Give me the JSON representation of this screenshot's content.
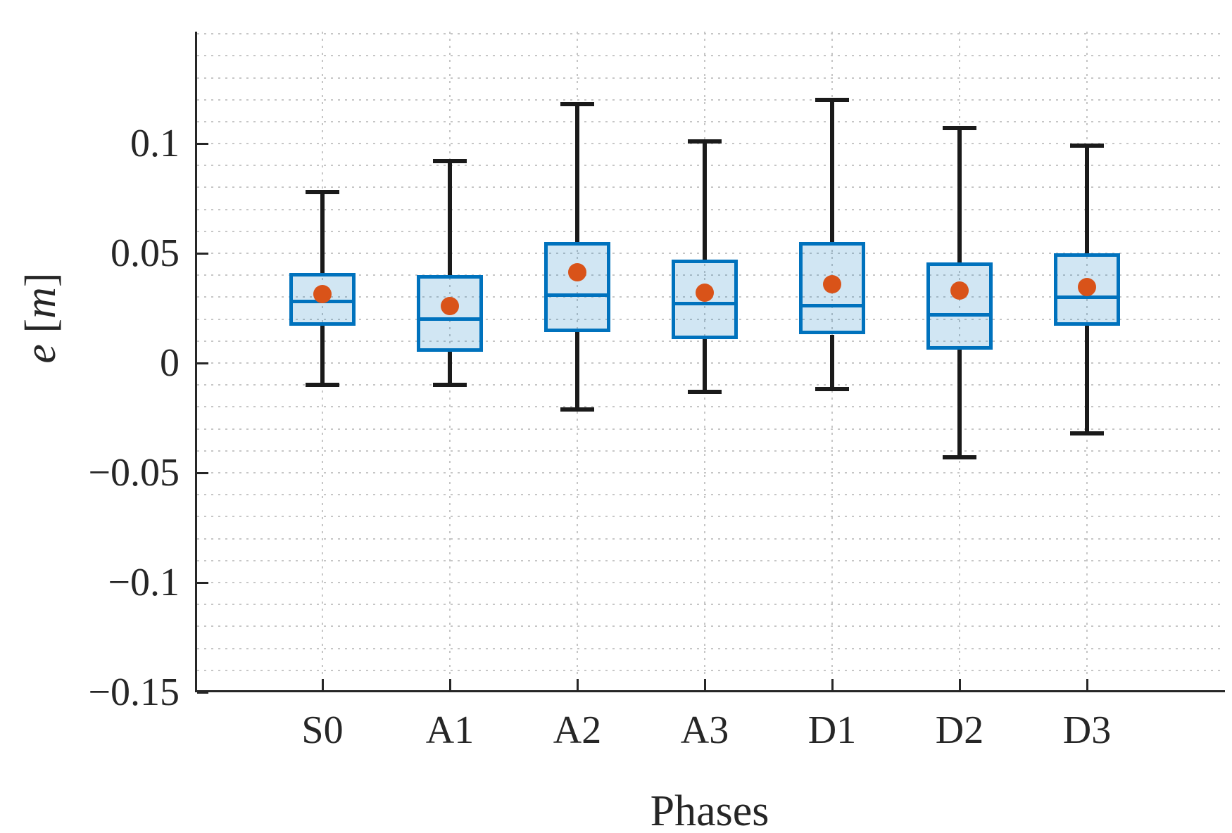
{
  "figure": {
    "background": "#ffffff"
  },
  "chart_data": {
    "type": "boxplot",
    "title": "",
    "xlabel": "Phases",
    "ylabel": "e [m]",
    "ylabel_parts": {
      "symbol": "e",
      "open_bracket": "[",
      "unit": "m",
      "close_bracket": "]"
    },
    "categories": [
      "S0",
      "A1",
      "A2",
      "A3",
      "D1",
      "D2",
      "D3"
    ],
    "boxes": [
      {
        "label": "S0",
        "whisker_low": -0.01,
        "q1": 0.017,
        "median": 0.028,
        "q3": 0.041,
        "whisker_high": 0.078,
        "mean": 0.0315
      },
      {
        "label": "A1",
        "whisker_low": -0.01,
        "q1": 0.005,
        "median": 0.02,
        "q3": 0.04,
        "whisker_high": 0.092,
        "mean": 0.026
      },
      {
        "label": "A2",
        "whisker_low": -0.021,
        "q1": 0.014,
        "median": 0.031,
        "q3": 0.055,
        "whisker_high": 0.118,
        "mean": 0.0415
      },
      {
        "label": "A3",
        "whisker_low": -0.013,
        "q1": 0.011,
        "median": 0.027,
        "q3": 0.047,
        "whisker_high": 0.101,
        "mean": 0.032
      },
      {
        "label": "D1",
        "whisker_low": -0.012,
        "q1": 0.013,
        "median": 0.026,
        "q3": 0.055,
        "whisker_high": 0.12,
        "mean": 0.036
      },
      {
        "label": "D2",
        "whisker_low": -0.043,
        "q1": 0.006,
        "median": 0.022,
        "q3": 0.046,
        "whisker_high": 0.107,
        "mean": 0.033
      },
      {
        "label": "D3",
        "whisker_low": -0.032,
        "q1": 0.017,
        "median": 0.03,
        "q3": 0.05,
        "whisker_high": 0.099,
        "mean": 0.0345
      }
    ],
    "y_ticks": [
      0.1,
      0.05,
      0,
      -0.05,
      -0.1,
      -0.15
    ],
    "y_tick_labels": [
      "0.1",
      "0.05",
      "0",
      "−0.05",
      "−0.1",
      "−0.15"
    ],
    "ylim": [
      -0.15,
      0.151
    ],
    "minor_grid_step": 0.01,
    "grid_style": "dotted",
    "legend": "none",
    "colors": {
      "box_edge": "#0072BD",
      "box_fill_rgba": "rgba(0,114,189,0.18)",
      "mean_marker": "#D95319",
      "whisker": "#1a1a1a",
      "grid": "#c6c6c6",
      "axis": "#262626"
    }
  }
}
